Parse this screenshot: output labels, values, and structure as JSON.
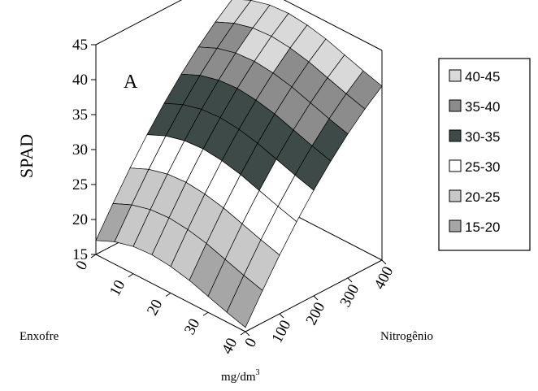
{
  "chart_data": {
    "type": "surface",
    "panel_label": "A",
    "zlabel": "SPAD",
    "xlabel": "Enxofre",
    "ylabel": "Nitrogênio",
    "unit_label": {
      "base": "mg/dm",
      "sup": "3"
    },
    "zlim": [
      15,
      45
    ],
    "z_ticks": [
      "15",
      "20",
      "25",
      "30",
      "35",
      "40",
      "45"
    ],
    "enxofre_ticks": [
      "0",
      "10",
      "20",
      "30",
      "40"
    ],
    "nitrogenio_ticks": [
      "0",
      "100",
      "200",
      "300",
      "400"
    ],
    "enxofre_values": [
      0,
      5,
      10,
      15,
      20,
      25,
      30,
      35,
      40
    ],
    "nitrogenio_values": [
      0,
      50,
      100,
      150,
      200,
      250,
      300,
      350,
      400
    ],
    "spad": [
      [
        17.0,
        21.0,
        24.8,
        28.3,
        31.5,
        34.4,
        37.0,
        39.3,
        41.3
      ],
      [
        18.2,
        22.2,
        26.0,
        29.5,
        32.7,
        35.6,
        38.2,
        40.5,
        42.5
      ],
      [
        18.9,
        22.9,
        26.7,
        30.2,
        33.4,
        36.3,
        38.9,
        41.2,
        43.2
      ],
      [
        19.1,
        23.1,
        26.9,
        30.4,
        33.6,
        36.5,
        39.1,
        41.4,
        43.4
      ],
      [
        18.8,
        22.8,
        26.6,
        30.1,
        33.3,
        36.2,
        38.8,
        41.1,
        43.1
      ],
      [
        18.2,
        22.2,
        26.0,
        29.5,
        32.7,
        35.6,
        38.2,
        40.5,
        42.5
      ],
      [
        17.3,
        21.3,
        25.1,
        28.6,
        31.8,
        34.7,
        37.3,
        39.6,
        41.6
      ],
      [
        16.4,
        20.4,
        24.2,
        27.7,
        30.9,
        33.8,
        36.4,
        38.7,
        40.7
      ],
      [
        15.6,
        19.6,
        23.4,
        26.9,
        30.1,
        33.0,
        35.6,
        37.9,
        39.9
      ]
    ],
    "legend": [
      {
        "label": "40-45",
        "color": "#d9d9d9"
      },
      {
        "label": "35-40",
        "color": "#8c8c8c"
      },
      {
        "label": "30-35",
        "color": "#3d4a47"
      },
      {
        "label": "25-30",
        "color": "#ffffff"
      },
      {
        "label": "20-25",
        "color": "#c8c8c8"
      },
      {
        "label": "15-20",
        "color": "#a6a6a6"
      }
    ],
    "legend_placement": "right",
    "grid": false
  }
}
